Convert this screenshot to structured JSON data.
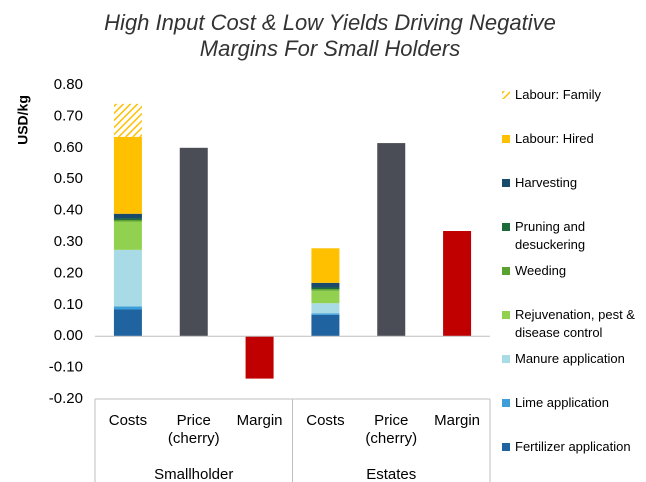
{
  "chart_data": {
    "type": "stacked_bar",
    "title": "High Input Cost & Low Yields Driving Negative Margins For Small Holders",
    "ylabel": "USD/kg",
    "categories": [
      "Costs",
      "Price (cherry)",
      "Margin",
      "Costs",
      "Price (cherry)",
      "Margin"
    ],
    "groups": [
      {
        "name": "Smallholder",
        "size": 3
      },
      {
        "name": "Estates",
        "size": 3
      }
    ],
    "ylim": [
      -0.2,
      0.8
    ],
    "yticks": [
      {
        "value": 0.8,
        "label": "0.80"
      },
      {
        "value": 0.7,
        "label": "0.70"
      },
      {
        "value": 0.6,
        "label": "0.60"
      },
      {
        "value": 0.5,
        "label": "0.50"
      },
      {
        "value": 0.4,
        "label": "0.40"
      },
      {
        "value": 0.3,
        "label": "0.30"
      },
      {
        "value": 0.2,
        "label": "0.20"
      },
      {
        "value": 0.1,
        "label": "0.10"
      },
      {
        "value": 0,
        "label": "0.00"
      },
      {
        "value": -0.1,
        "label": "-0.10"
      },
      {
        "value": -0.2,
        "label": "-0.20"
      }
    ],
    "grid": false,
    "legend": "right",
    "series": [
      {
        "name": "Fertilizer application",
        "color": "#1f63a0",
        "values": [
          0.085,
          null,
          null,
          0.068,
          null,
          null
        ]
      },
      {
        "name": "Lime application",
        "color": "#3e9fd8",
        "values": [
          0.01,
          null,
          null,
          0.005,
          null,
          null
        ]
      },
      {
        "name": "Manure application",
        "color": "#a9dbe6",
        "values": [
          0.18,
          null,
          null,
          0.032,
          null,
          null
        ]
      },
      {
        "name": "Rejuvenation, pest & disease control",
        "color": "#92d050",
        "values": [
          0.09,
          null,
          null,
          0.04,
          null,
          null
        ]
      },
      {
        "name": "Weeding",
        "color": "#5ba12e",
        "values": [
          0.005,
          null,
          null,
          0.005,
          null,
          null
        ]
      },
      {
        "name": "Pruning and desuckering",
        "color": "#1d6b3a",
        "values": [
          0.005,
          null,
          null,
          0.005,
          null,
          null
        ]
      },
      {
        "name": "Harvesting",
        "color": "#1a4a6a",
        "values": [
          0.015,
          null,
          null,
          0.015,
          null,
          null
        ]
      },
      {
        "name": "Labour: Hired",
        "color": "#ffc000",
        "values": [
          0.245,
          null,
          null,
          0.11,
          null,
          null
        ]
      },
      {
        "name": "Labour: Family",
        "color": "#ffc000",
        "pattern": "hatch",
        "values": [
          0.105,
          null,
          null,
          0,
          null,
          null
        ]
      },
      {
        "color": "#4a4d55",
        "values": [
          null,
          0.6,
          null,
          null,
          0.615,
          null
        ]
      },
      {
        "color": "#c00000",
        "values": [
          null,
          null,
          -0.135,
          null,
          null,
          0.335
        ]
      }
    ]
  }
}
